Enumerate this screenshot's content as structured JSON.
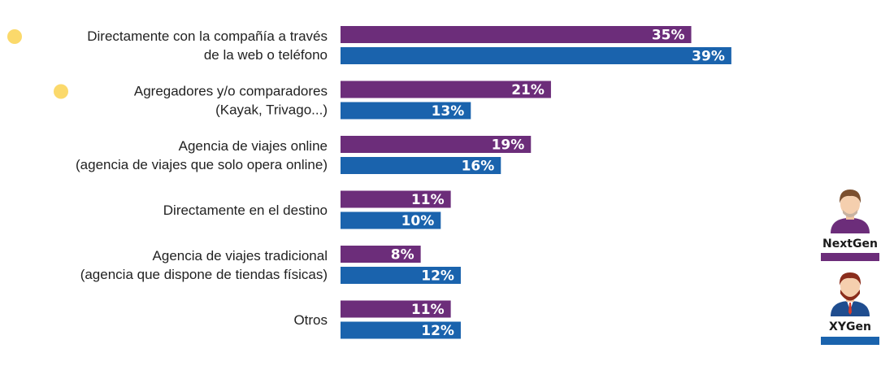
{
  "chart_data": {
    "type": "bar",
    "orientation": "horizontal",
    "categories": [
      [
        "Directamente con la compañía a través",
        "de la web o teléfono"
      ],
      [
        "Agregadores y/o comparadores",
        "(Kayak, Trivago...)"
      ],
      [
        "Agencia de viajes online",
        "(agencia de viajes que solo opera online)"
      ],
      [
        "Directamente en el destino"
      ],
      [
        "Agencia de viajes tradicional",
        "(agencia que dispone de tiendas físicas)"
      ],
      [
        "Otros"
      ]
    ],
    "highlighted": [
      true,
      true,
      false,
      false,
      false,
      false
    ],
    "series": [
      {
        "name": "NextGen",
        "color": "#6c2d7a",
        "values": [
          35,
          21,
          19,
          11,
          8,
          11
        ],
        "value_labels": [
          "35%",
          "21%",
          "19%",
          "11%",
          "8%",
          "11%"
        ]
      },
      {
        "name": "XYGen",
        "color": "#1a63ad",
        "values": [
          39,
          13,
          16,
          10,
          12,
          12
        ],
        "value_labels": [
          "39%",
          "13%",
          "16%",
          "10%",
          "12%",
          "12%"
        ]
      }
    ],
    "highlight_color": "#fbd96b",
    "xlim": [
      0,
      40
    ],
    "grid": false,
    "legend_placement": "right"
  }
}
